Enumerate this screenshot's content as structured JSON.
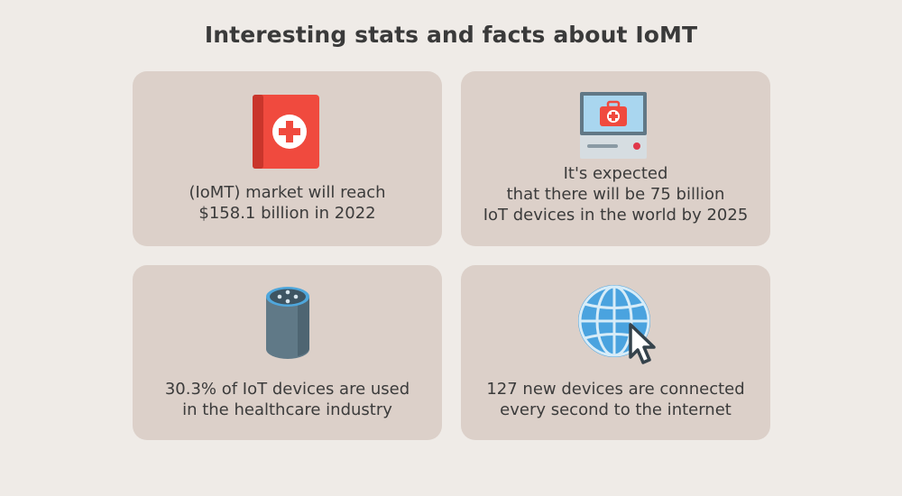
{
  "page": {
    "title": "Interesting stats and facts about IoMT"
  },
  "cards": [
    {
      "icon": "medical-book-icon",
      "lines": [
        "(IoMT) market will reach",
        "$158.1 billion in 2022"
      ]
    },
    {
      "icon": "monitor-first-aid-icon",
      "lines": [
        "It's expected",
        "that there will be 75 billion",
        "IoT devices in the world by 2025"
      ]
    },
    {
      "icon": "smart-speaker-icon",
      "lines": [
        "30.3% of IoT devices are used",
        "in the healthcare industry"
      ]
    },
    {
      "icon": "globe-cursor-icon",
      "lines": [
        "127 new devices are connected",
        "every second to the internet"
      ]
    }
  ],
  "colors": {
    "background": "#efebe7",
    "card": "#dcd0c9",
    "text": "#3b3b3b",
    "medical_red": "#f04a3e",
    "speaker_body": "#5f7786",
    "globe_blue": "#4aa3df"
  }
}
